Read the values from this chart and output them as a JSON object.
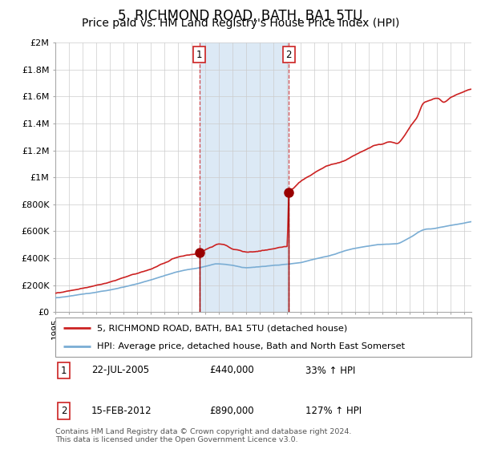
{
  "title": "5, RICHMOND ROAD, BATH, BA1 5TU",
  "subtitle": "Price paid vs. HM Land Registry's House Price Index (HPI)",
  "title_fontsize": 12,
  "subtitle_fontsize": 10,
  "xlim_start": 1995.0,
  "xlim_end": 2025.5,
  "ylim_min": 0,
  "ylim_max": 2000000,
  "yticks": [
    0,
    200000,
    400000,
    600000,
    800000,
    1000000,
    1200000,
    1400000,
    1600000,
    1800000,
    2000000
  ],
  "ytick_labels": [
    "£0",
    "£200K",
    "£400K",
    "£600K",
    "£800K",
    "£1M",
    "£1.2M",
    "£1.4M",
    "£1.6M",
    "£1.8M",
    "£2M"
  ],
  "hpi_color": "#7aadd4",
  "price_color": "#cc2222",
  "marker_color": "#990000",
  "grid_color": "#cccccc",
  "bg_color": "#ffffff",
  "sale1_year": 2005.55,
  "sale1_price": 440000,
  "sale2_year": 2012.12,
  "sale2_price": 890000,
  "shade_color": "#dce9f5",
  "legend_entries": [
    "5, RICHMOND ROAD, BATH, BA1 5TU (detached house)",
    "HPI: Average price, detached house, Bath and North East Somerset"
  ],
  "table_rows": [
    {
      "num": "1",
      "date": "22-JUL-2005",
      "price": "£440,000",
      "hpi": "33% ↑ HPI"
    },
    {
      "num": "2",
      "date": "15-FEB-2012",
      "price": "£890,000",
      "hpi": "127% ↑ HPI"
    }
  ],
  "footnote": "Contains HM Land Registry data © Crown copyright and database right 2024.\nThis data is licensed under the Open Government Licence v3.0.",
  "price_curve_x": [
    1995.0,
    1996.0,
    1997.0,
    1998.0,
    1999.0,
    2000.0,
    2001.0,
    2002.0,
    2003.0,
    2004.0,
    2005.0,
    2005.55,
    2006.0,
    2006.5,
    2007.0,
    2007.5,
    2008.0,
    2008.5,
    2009.0,
    2009.5,
    2010.0,
    2010.5,
    2011.0,
    2011.5,
    2012.0,
    2012.12,
    2012.5,
    2013.0,
    2014.0,
    2015.0,
    2016.0,
    2017.0,
    2017.5,
    2018.0,
    2018.5,
    2019.0,
    2019.5,
    2020.0,
    2020.5,
    2021.0,
    2021.5,
    2022.0,
    2022.5,
    2023.0,
    2023.5,
    2024.0,
    2024.5,
    2025.0,
    2025.5
  ],
  "price_curve_y": [
    140000,
    158000,
    175000,
    195000,
    220000,
    255000,
    290000,
    325000,
    370000,
    415000,
    435000,
    440000,
    470000,
    490000,
    510000,
    500000,
    475000,
    465000,
    450000,
    455000,
    465000,
    470000,
    480000,
    490000,
    495000,
    890000,
    930000,
    980000,
    1040000,
    1090000,
    1120000,
    1170000,
    1195000,
    1215000,
    1240000,
    1250000,
    1265000,
    1255000,
    1300000,
    1380000,
    1450000,
    1560000,
    1580000,
    1590000,
    1565000,
    1600000,
    1620000,
    1640000,
    1660000
  ],
  "hpi_curve_x": [
    1995.0,
    1996.0,
    1997.0,
    1998.0,
    1999.0,
    2000.0,
    2001.0,
    2002.0,
    2003.0,
    2004.0,
    2005.0,
    2006.0,
    2007.0,
    2008.0,
    2009.0,
    2010.0,
    2011.0,
    2012.0,
    2013.0,
    2014.0,
    2015.0,
    2016.0,
    2017.0,
    2018.0,
    2019.0,
    2020.0,
    2021.0,
    2022.0,
    2023.0,
    2024.0,
    2025.5
  ],
  "hpi_curve_y": [
    105000,
    118000,
    132000,
    148000,
    165000,
    188000,
    213000,
    243000,
    275000,
    305000,
    325000,
    345000,
    365000,
    355000,
    340000,
    348000,
    355000,
    362000,
    375000,
    400000,
    425000,
    455000,
    480000,
    500000,
    515000,
    520000,
    565000,
    620000,
    635000,
    655000,
    680000
  ]
}
